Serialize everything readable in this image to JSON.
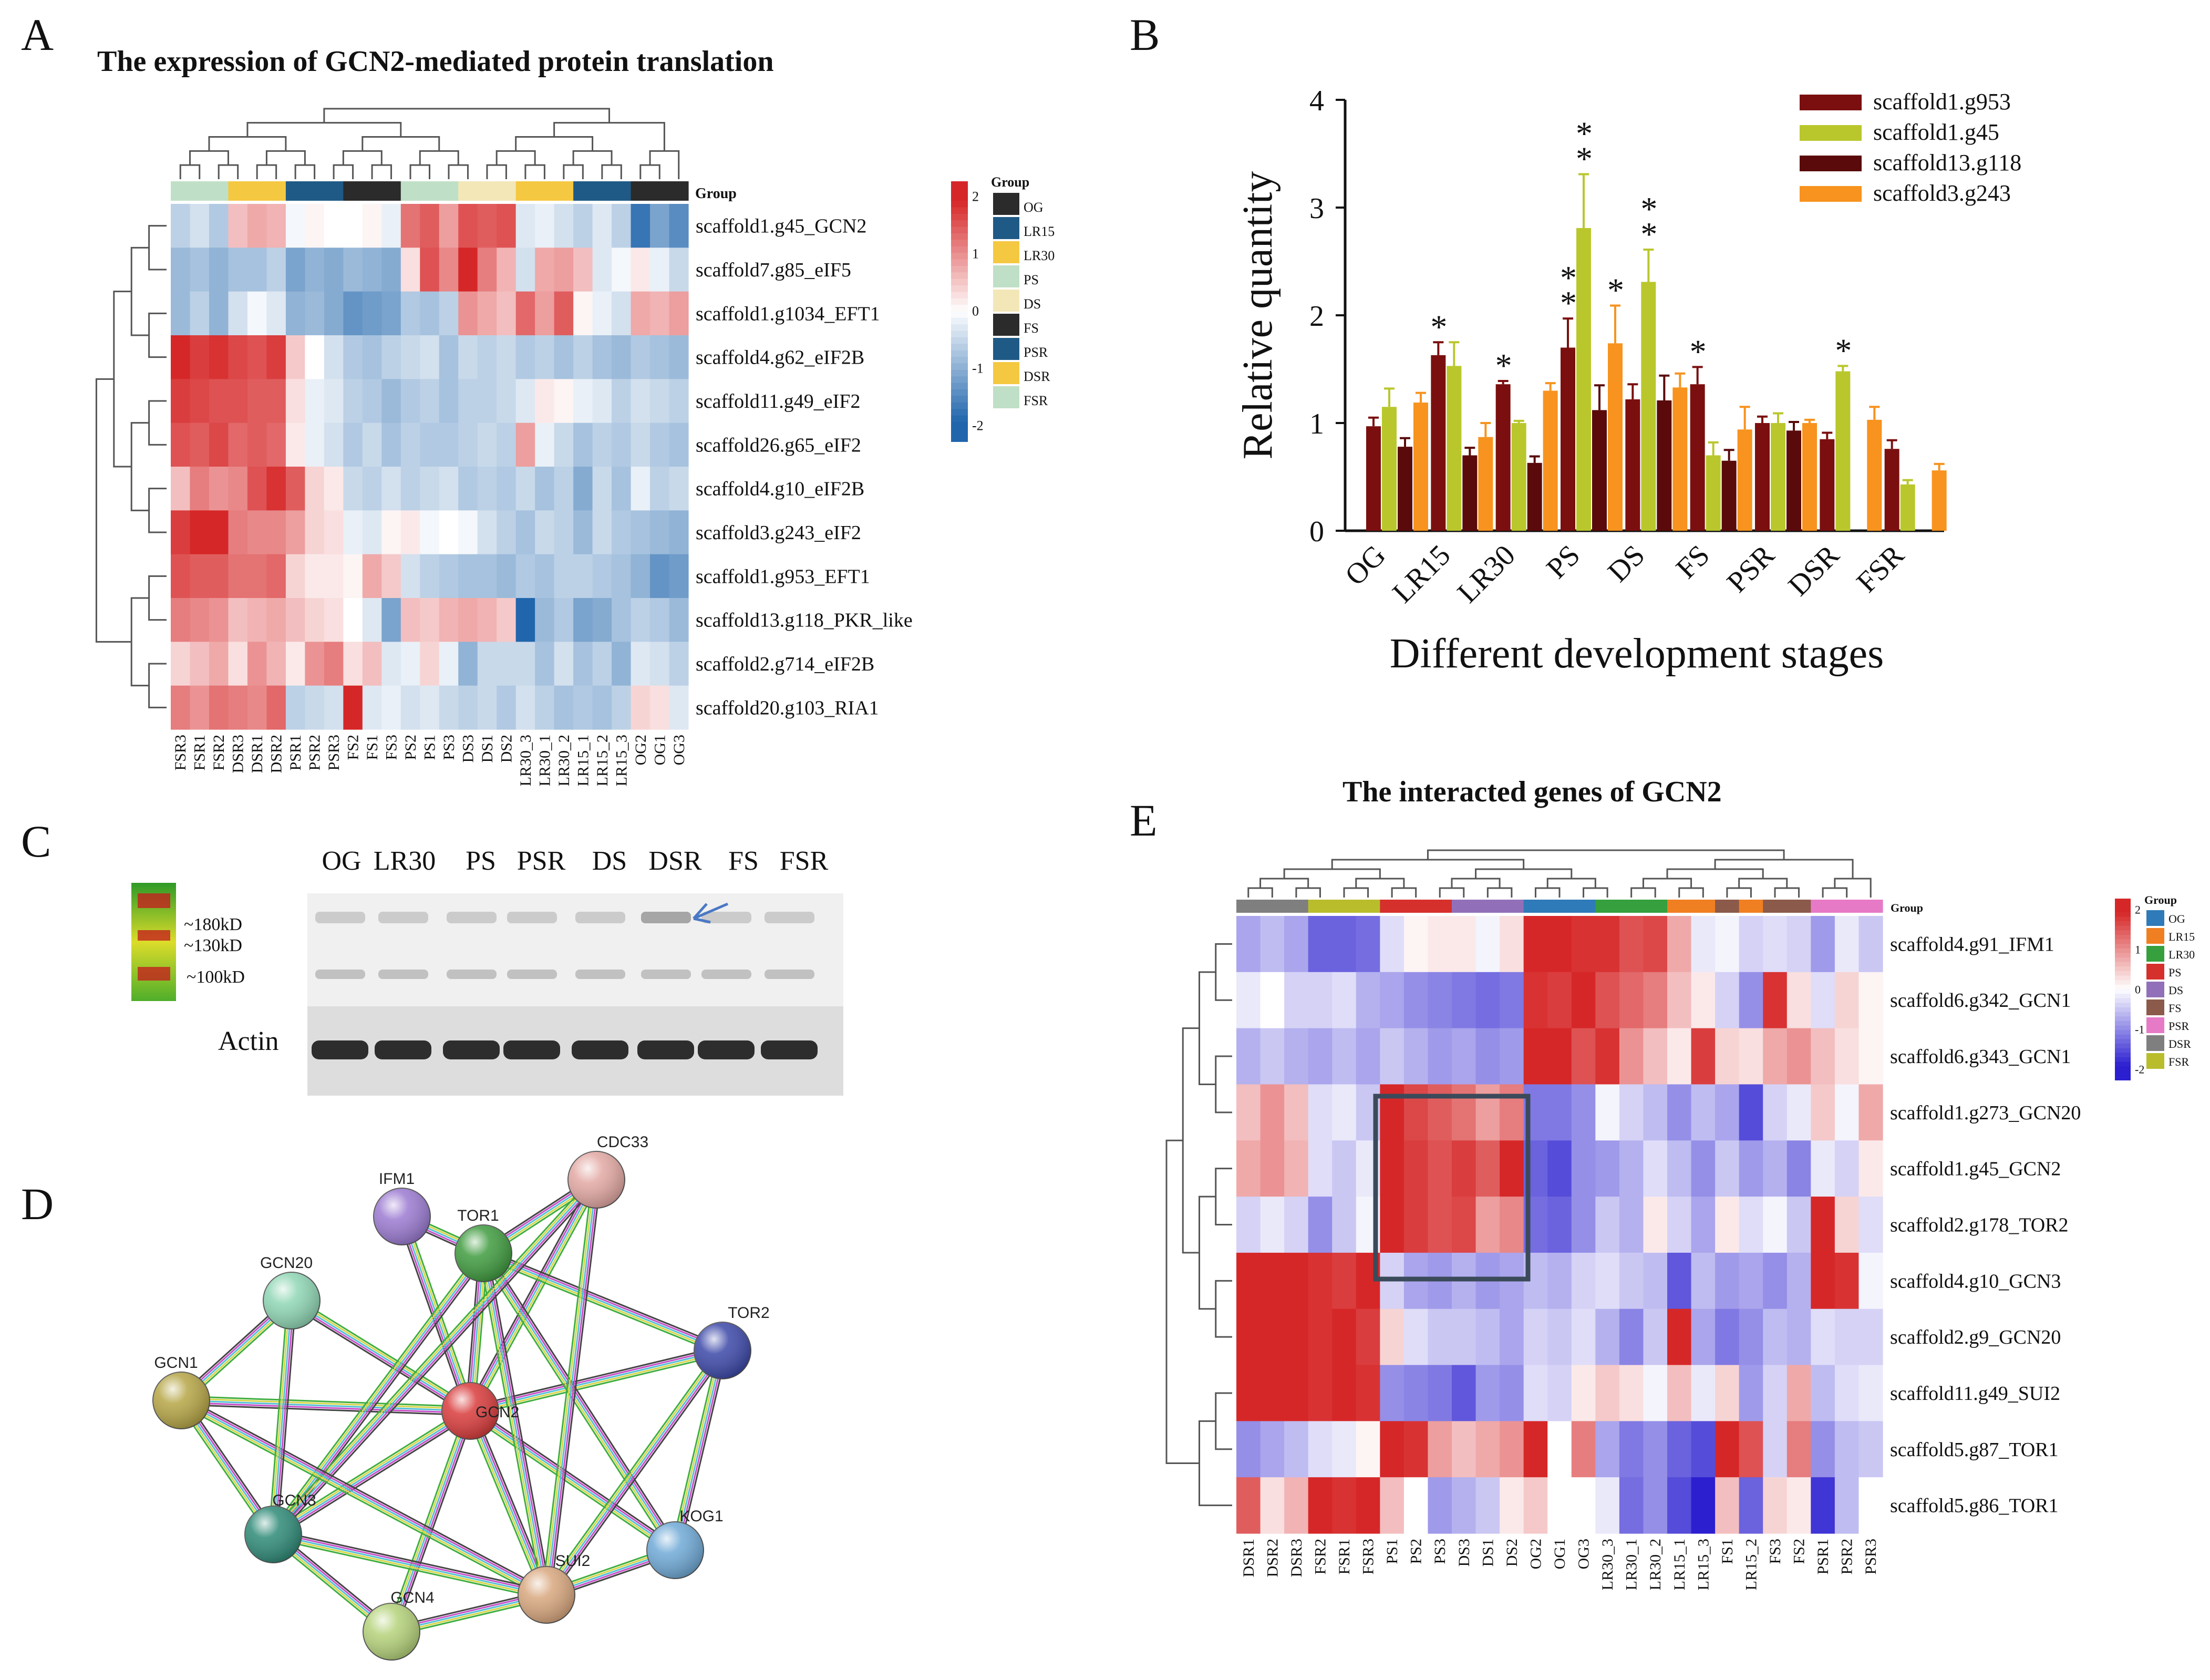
{
  "panels": {
    "A": "A",
    "B": "B",
    "C": "C",
    "D": "D",
    "E": "E"
  },
  "colors": {
    "OG": "#2b2b2b",
    "LR15": "#1f5a86",
    "LR30": "#f5c842",
    "PS": "#bfe0c6",
    "DS": "#f3e7b8",
    "FS": "#2b2b2b",
    "PSR": "#1f5a86",
    "DSR": "#f5c842",
    "FSR": "#bfe0c6",
    "E_OG": "#2f7ab8",
    "E_LR15": "#f07f22",
    "E_LR30": "#35a03d",
    "E_PS": "#d6302c",
    "E_DS": "#9270b9",
    "E_FS": "#8b5a4a",
    "E_PSR": "#e77ac6",
    "E_DSR": "#7f7f7f",
    "E_FSR": "#b9bd2c",
    "scale_high": "#d62728",
    "scale_mid": "#ffffff",
    "scale_low": "#2166ac",
    "scale_low_E": "#2b1fd0"
  },
  "heatmapA": {
    "title": "The expression of GCN2-mediated protein translation",
    "group_label": "Group",
    "legend_title": "Group",
    "legend_groups": [
      "OG",
      "LR15",
      "LR30",
      "PS",
      "DS",
      "FS",
      "PSR",
      "DSR",
      "FSR"
    ],
    "scale_ticks": [
      "2",
      "1",
      "0",
      "-1",
      "-2"
    ],
    "rows": [
      "scaffold1.g45_GCN2",
      "scaffold7.g85_eIF5",
      "scaffold1.g1034_EFT1",
      "scaffold4.g62_eIF2B",
      "scaffold11.g49_eIF2",
      "scaffold26.g65_eIF2",
      "scaffold4.g10_eIF2B",
      "scaffold3.g243_eIF2",
      "scaffold1.g953_EFT1",
      "scaffold13.g118_PKR_like",
      "scaffold2.g714_eIF2B",
      "scaffold20.g103_RIA1"
    ],
    "cols": [
      "FSR3",
      "FSR1",
      "FSR2",
      "DSR3",
      "DSR1",
      "DSR2",
      "PSR1",
      "PSR2",
      "PSR3",
      "FS2",
      "FS1",
      "FS3",
      "PS2",
      "PS1",
      "PS3",
      "DS3",
      "DS1",
      "DS2",
      "LR30_3",
      "LR30_1",
      "LR30_2",
      "LR15_1",
      "LR15_2",
      "LR15_3",
      "OG2",
      "OG1",
      "OG3"
    ],
    "col_groups": [
      "FSR",
      "FSR",
      "FSR",
      "DSR",
      "DSR",
      "DSR",
      "PSR",
      "PSR",
      "PSR",
      "FS",
      "FS",
      "FS",
      "PS",
      "PS",
      "PS",
      "DS",
      "DS",
      "DS",
      "LR30",
      "LR30",
      "LR30",
      "LR15",
      "LR15",
      "LR15",
      "OG",
      "OG",
      "OG"
    ],
    "values": [
      [
        -0.6,
        -0.4,
        -0.7,
        0.6,
        0.8,
        0.7,
        -0.1,
        0.1,
        0.0,
        0.0,
        0.1,
        -0.2,
        1.3,
        1.5,
        0.9,
        1.6,
        1.5,
        1.6,
        -0.3,
        -0.2,
        -0.4,
        -0.6,
        -0.3,
        -0.6,
        -1.8,
        -1.2,
        -1.5
      ],
      [
        -0.9,
        -0.8,
        -1.0,
        -0.8,
        -0.8,
        -0.6,
        -1.2,
        -1.0,
        -1.1,
        -0.9,
        -1.0,
        -1.1,
        0.3,
        1.6,
        1.1,
        2.2,
        1.2,
        0.7,
        -0.4,
        0.8,
        0.9,
        0.6,
        -0.3,
        -0.1,
        0.2,
        -0.2,
        -0.5
      ],
      [
        -0.9,
        -0.6,
        -1.0,
        -0.4,
        -0.1,
        -0.3,
        -1.0,
        -0.9,
        -1.1,
        -1.4,
        -1.3,
        -1.2,
        -0.7,
        -0.8,
        -0.6,
        1.0,
        0.8,
        0.6,
        1.4,
        0.9,
        1.5,
        0.1,
        -0.2,
        -0.4,
        0.8,
        0.7,
        0.9
      ],
      [
        2.0,
        1.8,
        1.9,
        1.7,
        1.6,
        1.8,
        0.5,
        0.0,
        -0.4,
        -0.7,
        -0.8,
        -0.6,
        -0.5,
        -0.4,
        -0.8,
        -0.5,
        -0.6,
        -0.5,
        -0.7,
        -0.6,
        -0.8,
        -0.6,
        -0.8,
        -0.9,
        -0.7,
        -0.8,
        -0.9
      ],
      [
        1.8,
        1.7,
        1.6,
        1.6,
        1.5,
        1.5,
        0.3,
        -0.2,
        -0.3,
        -0.6,
        -0.7,
        -0.9,
        -0.7,
        -0.6,
        -0.8,
        -0.6,
        -0.6,
        -0.5,
        -0.3,
        0.2,
        0.1,
        -0.2,
        -0.3,
        -0.6,
        -0.4,
        -0.5,
        -0.6
      ],
      [
        1.6,
        1.5,
        1.7,
        1.4,
        1.5,
        1.4,
        0.2,
        -0.2,
        -0.4,
        -0.7,
        -0.5,
        -0.8,
        -0.6,
        -0.7,
        -0.7,
        -0.6,
        -0.5,
        -0.6,
        0.9,
        -0.2,
        -0.5,
        -0.8,
        -0.6,
        -0.7,
        -0.5,
        -0.7,
        -0.8
      ],
      [
        0.6,
        1.2,
        1.0,
        1.1,
        1.6,
        1.9,
        1.5,
        0.4,
        0.2,
        -0.5,
        -0.6,
        -0.4,
        -0.6,
        -0.5,
        -0.4,
        -0.7,
        -0.6,
        -0.7,
        -0.5,
        -0.8,
        -0.6,
        -1.1,
        -0.5,
        -0.8,
        -0.2,
        -0.6,
        -0.5
      ],
      [
        1.8,
        2.0,
        2.3,
        1.2,
        1.1,
        1.1,
        0.9,
        0.4,
        0.3,
        -0.2,
        -0.3,
        0.1,
        0.2,
        -0.1,
        0.0,
        -0.1,
        -0.4,
        -0.6,
        -0.8,
        -0.5,
        -0.6,
        -0.9,
        -0.5,
        -0.7,
        -0.8,
        -0.9,
        -1.0
      ],
      [
        1.6,
        1.5,
        1.5,
        1.3,
        1.3,
        1.4,
        0.4,
        0.2,
        0.2,
        0.1,
        0.8,
        0.5,
        -0.4,
        -0.6,
        -0.7,
        -0.8,
        -0.8,
        -0.9,
        -0.7,
        -0.8,
        -0.6,
        -0.6,
        -0.7,
        -0.8,
        -1.0,
        -1.4,
        -1.3
      ],
      [
        1.2,
        1.1,
        1.0,
        0.6,
        0.7,
        0.8,
        0.6,
        0.4,
        0.3,
        0.0,
        -0.3,
        -1.2,
        0.6,
        0.5,
        0.7,
        0.8,
        0.7,
        0.5,
        -2.0,
        -0.9,
        -0.7,
        -1.2,
        -1.1,
        -0.8,
        -0.6,
        -0.7,
        -0.9
      ],
      [
        0.4,
        0.6,
        0.8,
        0.3,
        1.0,
        0.7,
        0.2,
        1.0,
        1.2,
        0.3,
        0.6,
        -0.3,
        -0.2,
        0.4,
        -0.2,
        -1.0,
        -0.5,
        -0.5,
        -0.5,
        -0.8,
        -0.4,
        -0.8,
        -0.6,
        -1.0,
        -0.3,
        -0.4,
        -0.6
      ],
      [
        1.2,
        1.0,
        1.3,
        1.2,
        1.1,
        1.4,
        -0.6,
        -0.5,
        -0.4,
        2.0,
        -0.3,
        -0.2,
        -0.4,
        -0.3,
        -0.5,
        -0.6,
        -0.5,
        -0.7,
        -0.4,
        -0.6,
        -0.8,
        -0.7,
        -0.8,
        -0.6,
        0.4,
        0.3,
        -0.3
      ]
    ]
  },
  "chart_data": [
    {
      "type": "bar",
      "title": "",
      "xlabel": "Different development stages",
      "ylabel": "Relative quantity",
      "ylim": [
        0,
        4
      ],
      "yticks": [
        "0",
        "1",
        "2",
        "3",
        "4"
      ],
      "categories": [
        "OG",
        "LR15",
        "LR30",
        "PS",
        "DS",
        "FS",
        "PSR",
        "DSR",
        "FSR"
      ],
      "legend_position": "top-right",
      "series": [
        {
          "name": "scaffold1.g953",
          "color": "#7b0f0f",
          "values": [
            0.97,
            1.63,
            1.36,
            1.7,
            1.22,
            1.36,
            1.0,
            0.85,
            0.76
          ],
          "errors": [
            0.08,
            0.12,
            0.03,
            0.27,
            0.14,
            0.16,
            0.06,
            0.06,
            0.08
          ]
        },
        {
          "name": "scaffold1.g45",
          "color": "#b9c72c",
          "values": [
            1.15,
            1.53,
            1.0,
            2.81,
            2.31,
            0.7,
            1.0,
            1.48,
            0.43
          ],
          "errors": [
            0.17,
            0.22,
            0.02,
            0.5,
            0.3,
            0.12,
            0.09,
            0.05,
            0.04
          ]
        },
        {
          "name": "scaffold13.g118",
          "color": "#5a0a0a",
          "values": [
            0.78,
            0.7,
            0.63,
            1.12,
            1.21,
            0.65,
            0.93,
            0.0,
            0.0
          ],
          "errors": [
            0.08,
            0.07,
            0.06,
            0.23,
            0.23,
            0.1,
            0.08,
            0.0,
            0.0
          ]
        },
        {
          "name": "scaffold3.g243",
          "color": "#f7931e",
          "values": [
            1.19,
            0.87,
            1.3,
            1.74,
            1.33,
            0.94,
            1.0,
            1.03,
            0.56
          ],
          "errors": [
            0.09,
            0.13,
            0.07,
            0.35,
            0.13,
            0.21,
            0.03,
            0.12,
            0.06
          ]
        }
      ],
      "significance": [
        {
          "category": "LR15",
          "series": "scaffold1.g953",
          "label": "*"
        },
        {
          "category": "LR30",
          "series": "scaffold1.g953",
          "label": "*"
        },
        {
          "category": "PS",
          "series": "scaffold1.g953",
          "label": "**"
        },
        {
          "category": "PS",
          "series": "scaffold1.g45",
          "label": "**"
        },
        {
          "category": "PS",
          "series": "scaffold3.g243",
          "label": "*"
        },
        {
          "category": "DS",
          "series": "scaffold1.g45",
          "label": "**"
        },
        {
          "category": "FS",
          "series": "scaffold1.g953",
          "label": "*"
        },
        {
          "category": "DSR",
          "series": "scaffold1.g45",
          "label": "*"
        }
      ]
    }
  ],
  "blot": {
    "lanes": [
      "OG",
      "LR30",
      "PS",
      "PSR",
      "DS",
      "DSR",
      "FS",
      "FSR"
    ],
    "markers": [
      "~180kD",
      "~130kD",
      "~100kD"
    ],
    "actin_label": "Actin"
  },
  "network": {
    "nodes": [
      {
        "name": "IFM1",
        "color": "#9b7ad1"
      },
      {
        "name": "CDC33",
        "color": "#e2a8a3"
      },
      {
        "name": "TOR1",
        "color": "#3f9b3f"
      },
      {
        "name": "GCN20",
        "color": "#8fd6b4"
      },
      {
        "name": "TOR2",
        "color": "#3c48a8"
      },
      {
        "name": "GCN1",
        "color": "#b5a545"
      },
      {
        "name": "GCN2",
        "color": "#d93b3b"
      },
      {
        "name": "GCN3",
        "color": "#2e8a77"
      },
      {
        "name": "KOG1",
        "color": "#6fa9d6"
      },
      {
        "name": "SUI2",
        "color": "#d8a77e"
      },
      {
        "name": "GCN4",
        "color": "#b4d27a"
      }
    ]
  },
  "heatmapE": {
    "title": "The interacted genes of GCN2",
    "group_label": "Group",
    "legend_title": "Group",
    "legend_groups": [
      "OG",
      "LR15",
      "LR30",
      "PS",
      "DS",
      "FS",
      "PSR",
      "DSR",
      "FSR"
    ],
    "scale_ticks": [
      "2",
      "1",
      "0",
      "-1",
      "-2"
    ],
    "rows": [
      "scaffold4.g91_IFM1",
      "scaffold6.g342_GCN1",
      "scaffold6.g343_GCN1",
      "scaffold1.g273_GCN20",
      "scaffold1.g45_GCN2",
      "scaffold2.g178_TOR2",
      "scaffold4.g10_GCN3",
      "scaffold2.g9_GCN20",
      "scaffold11.g49_SUI2",
      "scaffold5.g87_TOR1",
      "scaffold5.g86_TOR1"
    ],
    "cols": [
      "DSR1",
      "DSR2",
      "DSR3",
      "FSR2",
      "FSR1",
      "FSR3",
      "PS1",
      "PS2",
      "PS3",
      "DS3",
      "DS1",
      "DS2",
      "OG2",
      "OG1",
      "OG3",
      "LR30_3",
      "LR30_1",
      "LR30_2",
      "LR15_1",
      "LR15_3",
      "FS1",
      "LR15_2",
      "FS3",
      "FS2",
      "PSR1",
      "PSR2",
      "PSR3"
    ],
    "col_groups": [
      "DSR",
      "DSR",
      "DSR",
      "FSR",
      "FSR",
      "FSR",
      "PS",
      "PS",
      "PS",
      "DS",
      "DS",
      "DS",
      "OG",
      "OG",
      "OG",
      "LR30",
      "LR30",
      "LR30",
      "LR15",
      "LR15",
      "FS",
      "LR15",
      "FS",
      "FS",
      "PSR",
      "PSR",
      "PSR"
    ],
    "values": [
      [
        -0.8,
        -0.6,
        -0.8,
        -1.4,
        -1.4,
        -1.3,
        -0.3,
        0.1,
        0.2,
        0.2,
        -0.1,
        0.3,
        2.0,
        2.0,
        1.9,
        1.9,
        1.6,
        1.7,
        0.8,
        -0.2,
        -0.1,
        -0.4,
        -0.3,
        -0.4,
        -0.9,
        -0.2,
        -0.5
      ],
      [
        -0.2,
        0.0,
        -0.4,
        -0.4,
        -0.3,
        -0.7,
        -0.8,
        -1.0,
        -1.1,
        -1.2,
        -1.3,
        -1.2,
        1.9,
        1.8,
        2.0,
        1.6,
        1.4,
        1.2,
        0.6,
        0.2,
        -0.4,
        -1.0,
        1.9,
        0.3,
        -0.3,
        0.4,
        0.1
      ],
      [
        -0.7,
        -0.5,
        -0.7,
        -0.8,
        -0.6,
        -0.8,
        -0.5,
        -0.7,
        -0.9,
        -0.8,
        -1.0,
        -0.9,
        2.0,
        2.1,
        1.6,
        1.9,
        1.0,
        0.6,
        0.2,
        1.8,
        0.4,
        0.3,
        0.8,
        1.0,
        0.6,
        0.3,
        0.1
      ],
      [
        0.6,
        1.0,
        0.6,
        -0.3,
        -0.2,
        -0.5,
        2.2,
        1.7,
        1.5,
        1.3,
        0.9,
        1.2,
        -1.2,
        -1.2,
        -1.0,
        -0.1,
        -0.4,
        -0.6,
        -1.0,
        -0.6,
        -0.8,
        -1.6,
        -0.4,
        -0.2,
        0.5,
        -0.1,
        0.8
      ],
      [
        0.8,
        1.0,
        0.7,
        -0.3,
        -0.5,
        -0.2,
        2.0,
        1.8,
        1.6,
        1.8,
        1.5,
        2.0,
        -1.4,
        -1.6,
        -1.0,
        -0.9,
        -0.7,
        -0.3,
        -0.6,
        -1.0,
        -0.5,
        -0.9,
        -0.7,
        -1.1,
        -0.2,
        -0.4,
        0.2
      ],
      [
        -0.4,
        -0.2,
        -0.4,
        -1.0,
        -0.5,
        -0.1,
        2.2,
        1.8,
        1.6,
        1.7,
        0.9,
        1.1,
        -1.3,
        -1.4,
        -1.0,
        -0.5,
        -0.7,
        0.2,
        -0.4,
        -0.8,
        0.2,
        -0.3,
        -0.1,
        -0.5,
        2.1,
        0.4,
        -0.3
      ],
      [
        2.1,
        2.0,
        2.1,
        1.9,
        1.8,
        2.0,
        -0.4,
        -0.8,
        -0.9,
        -0.7,
        -0.9,
        -0.8,
        -0.6,
        -0.7,
        -0.4,
        -0.3,
        -0.5,
        -0.6,
        -1.5,
        -0.6,
        -0.9,
        -0.8,
        -1.0,
        -0.7,
        2.2,
        1.9,
        -0.1
      ],
      [
        2.1,
        2.1,
        2.0,
        1.9,
        2.0,
        1.8,
        0.4,
        -0.3,
        -0.5,
        -0.5,
        -0.6,
        -0.8,
        -0.4,
        -0.5,
        -0.3,
        -0.7,
        -1.1,
        -0.5,
        2.0,
        -0.8,
        -1.2,
        -1.0,
        -0.6,
        -0.7,
        -0.3,
        -0.4,
        -0.4
      ],
      [
        2.1,
        2.0,
        2.0,
        1.9,
        2.0,
        1.9,
        -1.0,
        -1.1,
        -1.2,
        -1.5,
        -0.9,
        -1.0,
        -0.3,
        -0.4,
        0.2,
        0.5,
        0.3,
        -0.1,
        0.6,
        -0.2,
        0.4,
        -0.9,
        -0.4,
        0.8,
        -0.6,
        -0.3,
        -0.2
      ],
      [
        -1.0,
        -0.8,
        -0.6,
        -0.3,
        -0.2,
        0.1,
        2.0,
        1.9,
        0.9,
        0.6,
        0.8,
        1.0,
        2.0,
        0.0,
        1.2,
        -0.8,
        -1.2,
        -1.0,
        -1.4,
        -1.6,
        2.0,
        1.6,
        -0.4,
        1.2,
        -1.0,
        -0.6,
        -0.5
      ],
      [
        1.5,
        0.3,
        0.7,
        2.0,
        1.9,
        2.0,
        0.6,
        0.0,
        -0.9,
        -0.7,
        -0.5,
        0.2,
        0.5,
        0.0,
        0.0,
        -0.2,
        -1.3,
        -1.0,
        -1.6,
        -2.4,
        0.6,
        -1.4,
        0.4,
        0.2,
        -1.8,
        -0.6,
        0.0
      ]
    ]
  }
}
